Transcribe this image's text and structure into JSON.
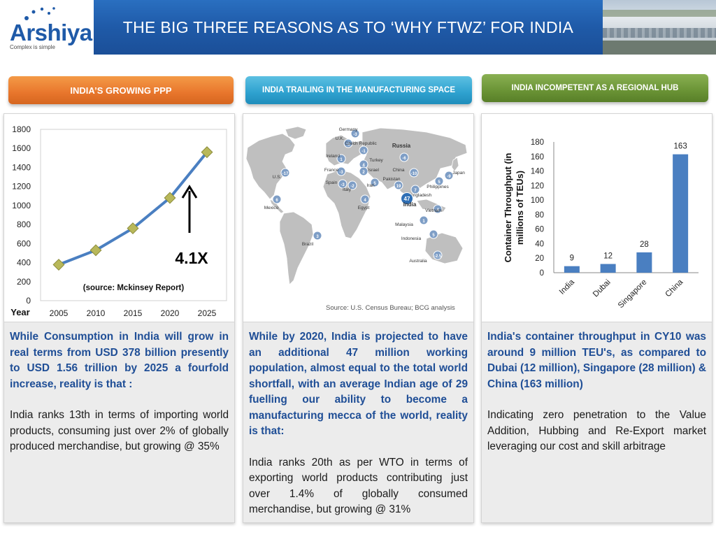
{
  "header": {
    "logo_text": "Arshiya",
    "logo_tagline": "Complex is simple",
    "title": "THE BIG THREE REASONS AS TO ‘WHY FTWZ’ FOR INDIA"
  },
  "sections": [
    {
      "heading": "INDIA’S GROWING PPP",
      "para1": "While Consumption in India will grow in real terms from USD 378 billion presently  to USD 1.56 trillion by 2025 a fourfold increase, reality is that :",
      "para2": "India ranks 13th in terms of importing world products, consuming just over 2% of globally produced merchandise, but growing @ 35%"
    },
    {
      "heading": "INDIA TRAILING IN THE MANUFACTURING SPACE",
      "para1": "While by 2020, India is projected to have an additional 47 million working population, almost equal to the total world shortfall, with an average Indian age of 29 fuelling our ability to become a manufacturing mecca of the world, reality is that:",
      "para2": " India ranks 20th as per WTO in terms of exporting world products  contributing just over 1.4%  of globally consumed merchandise, but  growing @ 31%"
    },
    {
      "heading": "INDIA INCOMPETENT AS A REGIONAL HUB",
      "para1": "India's container throughput in CY10 was around 9 million TEU's,  as compared to  Dubai  (12 million), Singapore (28 million) & China (163 million)",
      "para2": "Indicating zero penetration to the Value Addition, Hubbing and Re-Export market leveraging our cost and skill arbitrage"
    }
  ],
  "map": {
    "source": "Source: U.S. Census Bureau; BCG analysis",
    "labels": [
      {
        "name": "Germany",
        "value": "-3"
      },
      {
        "name": "U.K.",
        "value": "-2"
      },
      {
        "name": "Ireland",
        "value": "1"
      },
      {
        "name": "Czech Republic",
        "value": "-1"
      },
      {
        "name": "Russia",
        "value": "-6"
      },
      {
        "name": "Turkey",
        "value": "4"
      },
      {
        "name": "France",
        "value": "-3"
      },
      {
        "name": "Israel",
        "value": "2"
      },
      {
        "name": "China",
        "value": "-10"
      },
      {
        "name": "Japan",
        "value": "-9"
      },
      {
        "name": "Spain",
        "value": "-3"
      },
      {
        "name": "Pakistan",
        "value": "19"
      },
      {
        "name": "Italy",
        "value": "-2"
      },
      {
        "name": "Iran",
        "value": "5"
      },
      {
        "name": "Philippines",
        "value": "5"
      },
      {
        "name": "U.S.",
        "value": "-17"
      },
      {
        "name": "Egypt",
        "value": "4"
      },
      {
        "name": "Bangladesh",
        "value": "7"
      },
      {
        "name": "India",
        "value": "47"
      },
      {
        "name": "Mexico",
        "value": "6"
      },
      {
        "name": "Vietnam",
        "value": "4"
      },
      {
        "name": "Malaysia",
        "value": "1"
      },
      {
        "name": "Indonesia",
        "value": "5"
      },
      {
        "name": "Brazil",
        "value": "3"
      },
      {
        "name": "Australia",
        "value": "-2.5"
      }
    ]
  },
  "chart_data": [
    {
      "type": "line",
      "x": [
        2005,
        2010,
        2015,
        2020,
        2025
      ],
      "values": [
        378,
        530,
        760,
        1080,
        1560
      ],
      "xlabel": "Year",
      "ylim": [
        0,
        1800
      ],
      "yticks": [
        0,
        200,
        400,
        600,
        800,
        1000,
        1200,
        1400,
        1600,
        1800
      ],
      "annotation": "4.1X",
      "note": "(source: Mckinsey Report)",
      "color": "#4a7fc1",
      "marker_color": "#b8b85a"
    },
    {
      "type": "bar",
      "categories": [
        "India",
        "Dubai",
        "Singapore",
        "China"
      ],
      "values": [
        9,
        12,
        28,
        163
      ],
      "ylabel": "Container Throughput (in millions of TEUs)",
      "ylim": [
        0,
        180
      ],
      "yticks": [
        0,
        20,
        40,
        60,
        80,
        100,
        120,
        140,
        160,
        180
      ],
      "color": "#4a7fc1"
    }
  ]
}
